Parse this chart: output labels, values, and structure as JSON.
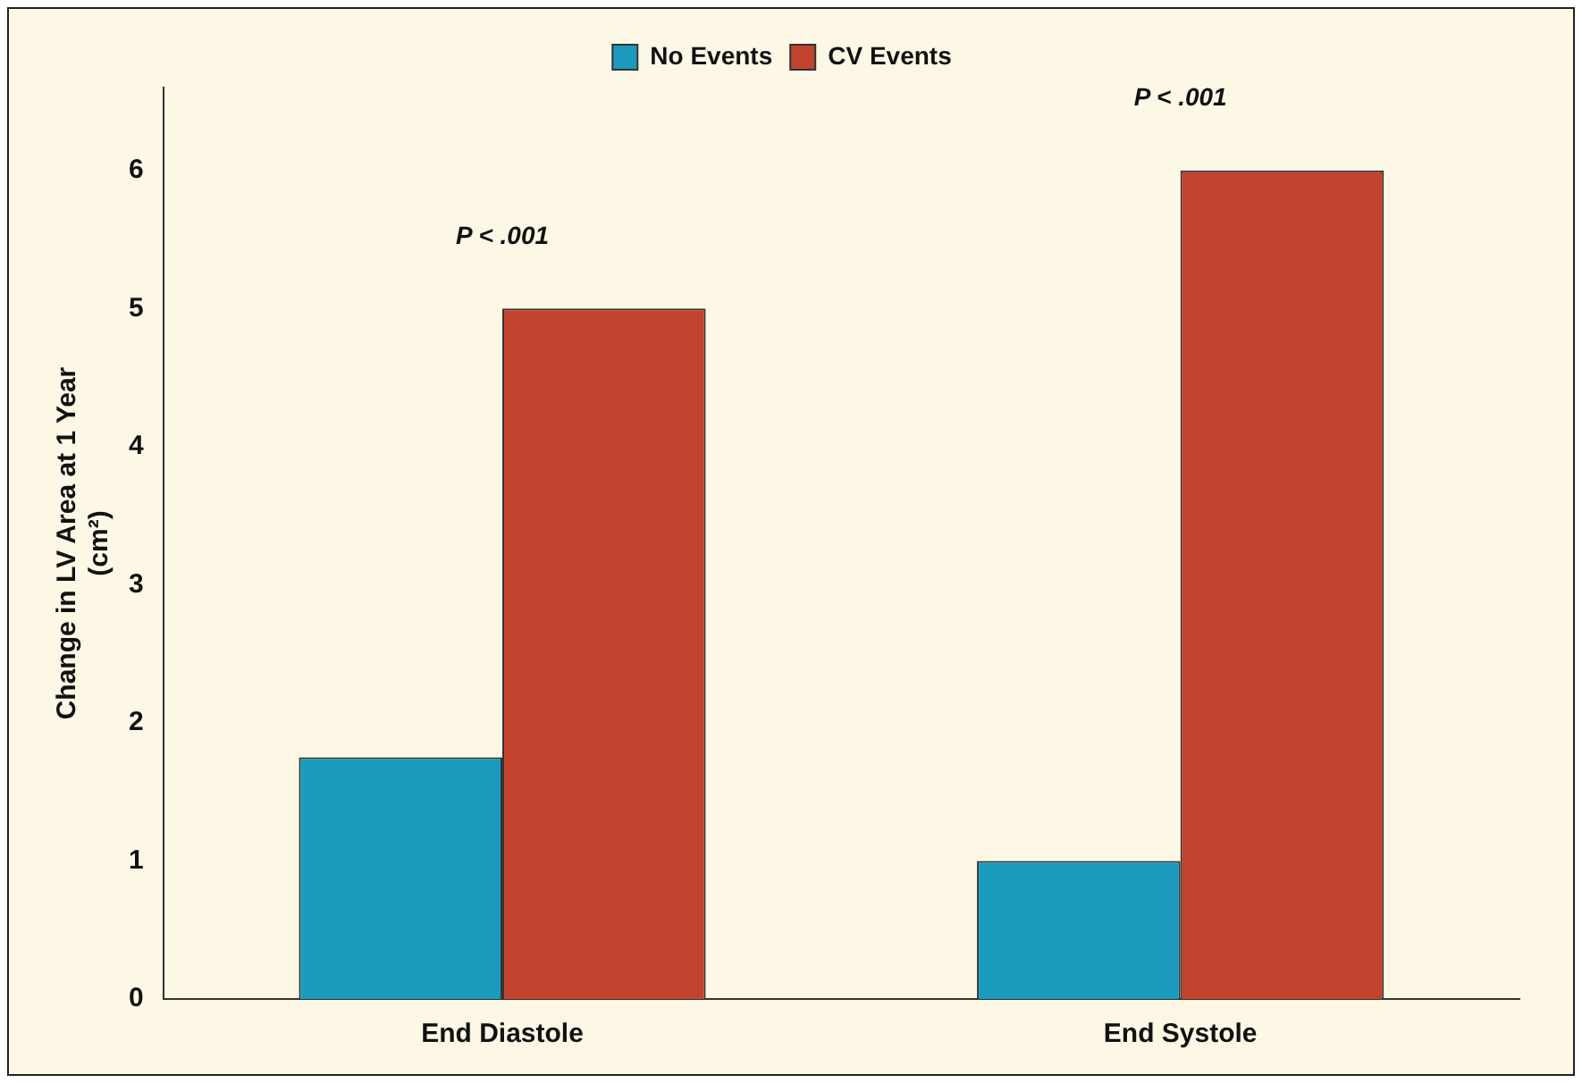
{
  "chart_data": {
    "type": "bar",
    "ylabel": "Change in LV Area at 1 Year (cm²)",
    "categories": [
      "End Diastole",
      "End Systole"
    ],
    "series": [
      {
        "name": "No Events",
        "color": "#1a9bbd",
        "values": [
          1.75,
          1.0
        ]
      },
      {
        "name": "CV Events",
        "color": "#c2432e",
        "values": [
          5.0,
          6.0
        ]
      }
    ],
    "ylim": [
      0,
      6.6
    ],
    "yticks": [
      0,
      1,
      2,
      3,
      4,
      5,
      6
    ],
    "grid": false,
    "legend": "top",
    "annotations": [
      "P < .001",
      "P < .001"
    ]
  }
}
